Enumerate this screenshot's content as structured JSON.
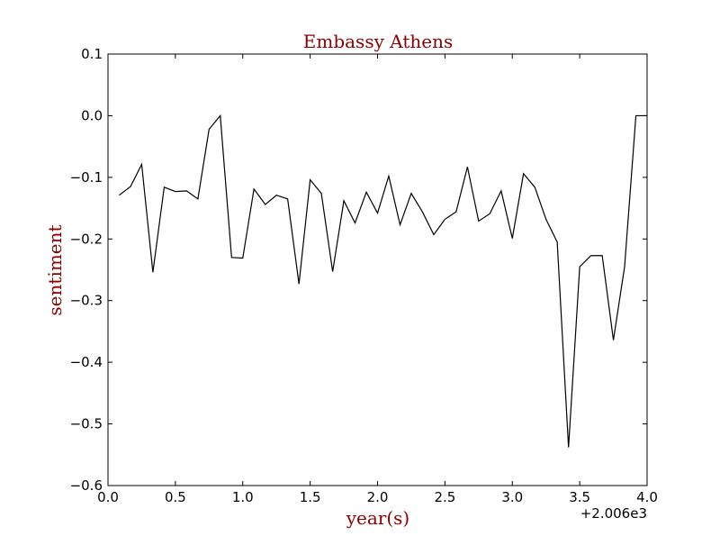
{
  "chart_data": {
    "type": "line",
    "title": "Embassy Athens",
    "xlabel": "year(s)",
    "ylabel": "sentiment",
    "x_offset_label": "+2.006e3",
    "xlim": [
      0.0,
      4.0
    ],
    "ylim": [
      -0.6,
      0.1
    ],
    "x_ticks": [
      "0.0",
      "0.5",
      "1.0",
      "1.5",
      "2.0",
      "2.5",
      "3.0",
      "3.5",
      "4.0"
    ],
    "y_ticks": [
      "0.1",
      "0.0",
      "−0.1",
      "−0.2",
      "−0.3",
      "−0.4",
      "−0.5",
      "−0.6"
    ],
    "grid": false,
    "colors": {
      "line": "#000000",
      "label": "#8b0000"
    },
    "series": [
      {
        "x": [
          0.083,
          0.167,
          0.25,
          0.333,
          0.417,
          0.5,
          0.583,
          0.667,
          0.75,
          0.833,
          0.917,
          1.0,
          1.083,
          1.167,
          1.25,
          1.333,
          1.417,
          1.5,
          1.583,
          1.667,
          1.75,
          1.833,
          1.917,
          2.0,
          2.083,
          2.167,
          2.25,
          2.333,
          2.417,
          2.5,
          2.583,
          2.667,
          2.75,
          2.833,
          2.917,
          3.0,
          3.083,
          3.167,
          3.25,
          3.333,
          3.417,
          3.5,
          3.583,
          3.667,
          3.75,
          3.833,
          3.917,
          4.0
        ],
        "y": [
          -0.129,
          -0.115,
          -0.079,
          -0.254,
          -0.116,
          -0.123,
          -0.122,
          -0.135,
          -0.022,
          0.0,
          -0.23,
          -0.231,
          -0.119,
          -0.144,
          -0.129,
          -0.135,
          -0.273,
          -0.104,
          -0.126,
          -0.253,
          -0.138,
          -0.174,
          -0.124,
          -0.158,
          -0.098,
          -0.177,
          -0.126,
          -0.156,
          -0.193,
          -0.168,
          -0.156,
          -0.083,
          -0.171,
          -0.159,
          -0.122,
          -0.199,
          -0.094,
          -0.116,
          -0.168,
          -0.205,
          -0.538,
          -0.245,
          -0.227,
          -0.227,
          -0.364,
          -0.245,
          0.0,
          0.0
        ]
      }
    ]
  }
}
